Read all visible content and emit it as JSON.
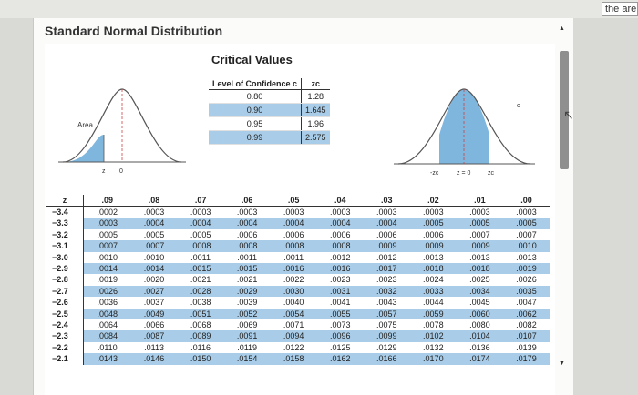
{
  "corner_text": "the are",
  "window": {
    "title": "Standard Normal Distribution"
  },
  "critical_values": {
    "title": "Critical Values",
    "headers": [
      "Level of Confidence c",
      "zc"
    ],
    "rows": [
      [
        "0.80",
        "1.28"
      ],
      [
        "0.90",
        "1.645"
      ],
      [
        "0.95",
        "1.96"
      ],
      [
        "0.99",
        "2.575"
      ]
    ]
  },
  "left_curve": {
    "area_label": "Area",
    "z_label": "z",
    "zero_label": "0"
  },
  "right_curve": {
    "c_label": "c",
    "neg_zc": "-zc",
    "z0": "z = 0",
    "pos_zc": "zc"
  },
  "z_table": {
    "headers": [
      "z",
      ".09",
      ".08",
      ".07",
      ".06",
      ".05",
      ".04",
      ".03",
      ".02",
      ".01",
      ".00"
    ],
    "rows": [
      [
        "−3.4",
        ".0002",
        ".0003",
        ".0003",
        ".0003",
        ".0003",
        ".0003",
        ".0003",
        ".0003",
        ".0003",
        ".0003"
      ],
      [
        "−3.3",
        ".0003",
        ".0004",
        ".0004",
        ".0004",
        ".0004",
        ".0004",
        ".0004",
        ".0005",
        ".0005",
        ".0005"
      ],
      [
        "−3.2",
        ".0005",
        ".0005",
        ".0005",
        ".0006",
        ".0006",
        ".0006",
        ".0006",
        ".0006",
        ".0007",
        ".0007"
      ],
      [
        "−3.1",
        ".0007",
        ".0007",
        ".0008",
        ".0008",
        ".0008",
        ".0008",
        ".0009",
        ".0009",
        ".0009",
        ".0010"
      ],
      [
        "−3.0",
        ".0010",
        ".0010",
        ".0011",
        ".0011",
        ".0011",
        ".0012",
        ".0012",
        ".0013",
        ".0013",
        ".0013"
      ],
      [
        "−2.9",
        ".0014",
        ".0014",
        ".0015",
        ".0015",
        ".0016",
        ".0016",
        ".0017",
        ".0018",
        ".0018",
        ".0019"
      ],
      [
        "−2.8",
        ".0019",
        ".0020",
        ".0021",
        ".0021",
        ".0022",
        ".0023",
        ".0023",
        ".0024",
        ".0025",
        ".0026"
      ],
      [
        "−2.7",
        ".0026",
        ".0027",
        ".0028",
        ".0029",
        ".0030",
        ".0031",
        ".0032",
        ".0033",
        ".0034",
        ".0035"
      ],
      [
        "−2.6",
        ".0036",
        ".0037",
        ".0038",
        ".0039",
        ".0040",
        ".0041",
        ".0043",
        ".0044",
        ".0045",
        ".0047"
      ],
      [
        "−2.5",
        ".0048",
        ".0049",
        ".0051",
        ".0052",
        ".0054",
        ".0055",
        ".0057",
        ".0059",
        ".0060",
        ".0062"
      ],
      [
        "−2.4",
        ".0064",
        ".0066",
        ".0068",
        ".0069",
        ".0071",
        ".0073",
        ".0075",
        ".0078",
        ".0080",
        ".0082"
      ],
      [
        "−2.3",
        ".0084",
        ".0087",
        ".0089",
        ".0091",
        ".0094",
        ".0096",
        ".0099",
        ".0102",
        ".0104",
        ".0107"
      ],
      [
        "−2.2",
        ".0110",
        ".0113",
        ".0116",
        ".0119",
        ".0122",
        ".0125",
        ".0129",
        ".0132",
        ".0136",
        ".0139"
      ],
      [
        "−2.1",
        ".0143",
        ".0146",
        ".0150",
        ".0154",
        ".0158",
        ".0162",
        ".0166",
        ".0170",
        ".0174",
        ".0179"
      ]
    ]
  },
  "colors": {
    "highlight": "#a9cde8",
    "curve_fill": "#7fb6de",
    "curve_line": "#555555"
  }
}
